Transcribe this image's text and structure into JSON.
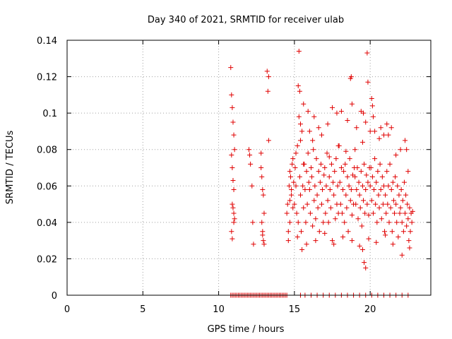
{
  "chart_data": {
    "type": "scatter",
    "title": "Day 340 of 2021, SRMTID for receiver ulab",
    "xlabel": "GPS time / hours",
    "ylabel": "SRMTID / TECUs",
    "xlim": [
      0,
      24
    ],
    "ylim": [
      0,
      0.14
    ],
    "xticks": [
      0,
      5,
      10,
      15,
      20
    ],
    "xtick_labels": [
      "0",
      "5",
      "10",
      "15",
      "20"
    ],
    "yticks": [
      0,
      0.02,
      0.04,
      0.06,
      0.08,
      0.1,
      0.12,
      0.14
    ],
    "ytick_labels": [
      "0",
      "0.02",
      "0.04",
      "0.06",
      "0.08",
      "0.1",
      "0.12",
      "0.14"
    ],
    "grid": true,
    "marker": "+",
    "color": "#e00000",
    "series": [
      {
        "name": "SRMTID",
        "x": [
          10.8,
          10.85,
          10.9,
          10.95,
          11.0,
          11.05,
          10.85,
          10.9,
          10.95,
          11.0,
          10.9,
          10.95,
          11.0,
          11.05,
          11.0,
          10.85,
          10.9,
          12.0,
          12.05,
          12.1,
          12.2,
          12.25,
          12.3,
          12.8,
          12.85,
          12.9,
          12.95,
          13.0,
          12.85,
          12.9,
          12.95,
          13.0,
          12.8,
          12.9,
          13.2,
          13.25,
          13.3,
          13.3,
          14.5,
          14.55,
          14.6,
          14.65,
          14.7,
          14.75,
          14.8,
          14.85,
          14.9,
          14.95,
          14.6,
          14.7,
          14.8,
          14.9,
          15.0,
          15.05,
          15.1,
          15.15,
          15.2,
          15.25,
          15.3,
          15.35,
          15.4,
          15.45,
          15.5,
          15.55,
          15.6,
          15.65,
          15.7,
          15.75,
          15.8,
          15.85,
          15.9,
          15.95,
          15.3,
          15.35,
          15.25,
          15.4,
          15.5,
          15.6,
          16.0,
          16.05,
          16.1,
          16.15,
          16.2,
          16.25,
          16.3,
          16.35,
          16.4,
          16.45,
          16.5,
          16.55,
          16.6,
          16.65,
          16.7,
          16.75,
          16.8,
          16.85,
          16.9,
          16.95,
          17.0,
          17.05,
          17.1,
          17.15,
          17.2,
          17.25,
          17.3,
          17.35,
          17.4,
          17.45,
          17.5,
          17.55,
          17.6,
          17.65,
          17.7,
          17.75,
          17.8,
          17.85,
          17.9,
          17.95,
          18.0,
          18.05,
          18.1,
          18.15,
          18.2,
          18.25,
          18.3,
          18.35,
          18.4,
          18.45,
          18.5,
          18.55,
          18.6,
          18.65,
          18.7,
          18.75,
          18.8,
          18.85,
          18.9,
          18.95,
          18.7,
          18.75,
          18.8,
          19.0,
          19.05,
          19.1,
          19.15,
          19.2,
          19.25,
          19.3,
          19.35,
          19.4,
          19.45,
          19.5,
          19.55,
          19.6,
          19.65,
          19.7,
          19.75,
          19.8,
          19.85,
          19.9,
          19.95,
          19.6,
          19.7,
          19.8,
          19.85,
          19.5,
          19.55,
          20.0,
          20.05,
          20.1,
          20.15,
          20.2,
          20.25,
          20.3,
          20.35,
          20.4,
          20.45,
          20.5,
          20.55,
          20.6,
          20.65,
          20.7,
          20.75,
          20.8,
          20.85,
          20.9,
          20.95,
          20.1,
          20.15,
          20.2,
          21.0,
          21.05,
          21.1,
          21.15,
          21.2,
          21.25,
          21.3,
          21.35,
          21.4,
          21.45,
          21.5,
          21.55,
          21.6,
          21.65,
          21.7,
          21.75,
          21.8,
          21.85,
          21.9,
          21.95,
          22.0,
          22.05,
          22.1,
          22.15,
          22.2,
          22.25,
          22.3,
          22.35,
          22.4,
          22.45,
          22.5,
          22.55,
          22.6,
          22.65,
          22.7,
          22.75,
          22.8,
          15.1,
          15.6,
          16.2,
          16.8,
          17.3,
          17.9,
          18.4,
          19.0,
          19.5,
          20.0,
          20.6,
          21.2,
          21.7,
          22.3,
          15.2,
          15.8,
          16.4,
          17.0,
          17.6,
          18.2,
          18.8,
          19.3,
          19.9,
          20.4,
          21.0,
          21.5,
          22.1,
          22.6,
          14.7,
          15.4,
          16.0,
          16.6,
          17.2,
          17.8,
          18.5,
          19.1,
          19.7,
          20.3,
          20.9,
          21.4,
          22.0,
          22.5,
          15.9,
          17.5,
          19.4,
          21.1,
          22.4,
          20.7,
          18.1,
          16.3,
          10.8,
          10.9,
          11.0,
          11.1,
          11.2,
          11.3,
          11.4,
          11.5,
          11.6,
          11.7,
          11.8,
          11.9,
          12.0,
          12.1,
          12.2,
          12.3,
          12.4,
          12.5,
          12.6,
          12.7,
          12.8,
          12.9,
          13.0,
          13.1,
          13.2,
          13.3,
          13.4,
          13.5,
          13.6,
          13.7,
          13.8,
          13.9,
          14.0,
          14.1,
          14.2,
          14.3,
          14.4,
          14.5,
          15.4,
          15.7,
          16.1,
          16.5,
          16.9,
          17.3,
          17.7,
          18.1,
          18.5,
          18.9,
          19.3,
          19.7,
          20.1,
          20.5,
          20.9,
          21.3,
          21.7,
          22.1,
          22.5
        ],
        "y": [
          0.125,
          0.11,
          0.103,
          0.095,
          0.088,
          0.08,
          0.077,
          0.07,
          0.063,
          0.058,
          0.05,
          0.048,
          0.045,
          0.042,
          0.04,
          0.035,
          0.031,
          0.08,
          0.077,
          0.072,
          0.06,
          0.04,
          0.028,
          0.078,
          0.065,
          0.058,
          0.055,
          0.045,
          0.04,
          0.035,
          0.03,
          0.028,
          0.07,
          0.033,
          0.123,
          0.112,
          0.085,
          0.12,
          0.045,
          0.05,
          0.035,
          0.06,
          0.04,
          0.065,
          0.055,
          0.072,
          0.048,
          0.062,
          0.03,
          0.052,
          0.058,
          0.075,
          0.05,
          0.07,
          0.06,
          0.045,
          0.082,
          0.04,
          0.098,
          0.065,
          0.055,
          0.035,
          0.09,
          0.06,
          0.048,
          0.072,
          0.058,
          0.04,
          0.068,
          0.05,
          0.078,
          0.062,
          0.134,
          0.112,
          0.115,
          0.085,
          0.025,
          0.105,
          0.058,
          0.045,
          0.07,
          0.065,
          0.038,
          0.08,
          0.052,
          0.06,
          0.042,
          0.075,
          0.055,
          0.048,
          0.068,
          0.035,
          0.062,
          0.072,
          0.05,
          0.058,
          0.04,
          0.066,
          0.07,
          0.045,
          0.06,
          0.078,
          0.052,
          0.04,
          0.065,
          0.058,
          0.048,
          0.072,
          0.03,
          0.062,
          0.055,
          0.068,
          0.042,
          0.075,
          0.05,
          0.06,
          0.045,
          0.082,
          0.062,
          0.05,
          0.07,
          0.045,
          0.058,
          0.068,
          0.04,
          0.072,
          0.055,
          0.048,
          0.065,
          0.035,
          0.06,
          0.075,
          0.052,
          0.058,
          0.044,
          0.066,
          0.05,
          0.07,
          0.119,
          0.12,
          0.105,
          0.065,
          0.05,
          0.058,
          0.07,
          0.042,
          0.062,
          0.055,
          0.048,
          0.068,
          0.038,
          0.06,
          0.052,
          0.072,
          0.045,
          0.058,
          0.066,
          0.05,
          0.062,
          0.044,
          0.07,
          0.018,
          0.015,
          0.133,
          0.117,
          0.025,
          0.1,
          0.06,
          0.07,
          0.052,
          0.065,
          0.045,
          0.058,
          0.075,
          0.05,
          0.062,
          0.04,
          0.068,
          0.055,
          0.048,
          0.072,
          0.058,
          0.042,
          0.065,
          0.05,
          0.06,
          0.035,
          0.108,
          0.104,
          0.098,
          0.055,
          0.045,
          0.068,
          0.05,
          0.06,
          0.04,
          0.072,
          0.048,
          0.058,
          0.035,
          0.062,
          0.052,
          0.045,
          0.065,
          0.05,
          0.04,
          0.06,
          0.032,
          0.055,
          0.045,
          0.048,
          0.058,
          0.04,
          0.052,
          0.035,
          0.062,
          0.045,
          0.055,
          0.038,
          0.05,
          0.042,
          0.03,
          0.048,
          0.035,
          0.045,
          0.04,
          0.046,
          0.078,
          0.072,
          0.085,
          0.088,
          0.076,
          0.082,
          0.079,
          0.08,
          0.084,
          0.09,
          0.086,
          0.088,
          0.077,
          0.085,
          0.032,
          0.028,
          0.03,
          0.034,
          0.028,
          0.032,
          0.03,
          0.027,
          0.031,
          0.029,
          0.033,
          0.028,
          0.022,
          0.026,
          0.068,
          0.094,
          0.09,
          0.092,
          0.094,
          0.1,
          0.096,
          0.092,
          0.095,
          0.09,
          0.088,
          0.092,
          0.08,
          0.068,
          0.101,
          0.103,
          0.101,
          0.094,
          0.08,
          0.092,
          0.101,
          0.098,
          0,
          0,
          0,
          0,
          0,
          0,
          0,
          0,
          0,
          0,
          0,
          0,
          0,
          0,
          0,
          0,
          0,
          0,
          0,
          0,
          0,
          0,
          0,
          0,
          0,
          0,
          0,
          0,
          0,
          0,
          0,
          0,
          0,
          0,
          0,
          0,
          0,
          0,
          0,
          0,
          0,
          0,
          0,
          0,
          0,
          0,
          0,
          0,
          0,
          0,
          0,
          0,
          0,
          0,
          0,
          0,
          0
        ]
      }
    ]
  }
}
